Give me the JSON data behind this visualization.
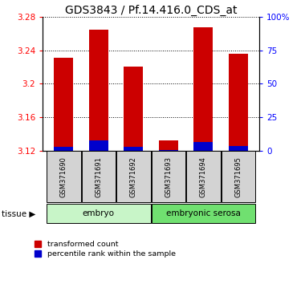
{
  "title": "GDS3843 / Pf.14.416.0_CDS_at",
  "samples": [
    "GSM371690",
    "GSM371691",
    "GSM371692",
    "GSM371693",
    "GSM371694",
    "GSM371695"
  ],
  "red_values": [
    3.231,
    3.265,
    3.221,
    3.132,
    3.268,
    3.236
  ],
  "blue_values": [
    3.124,
    3.132,
    3.124,
    3.121,
    3.13,
    3.125
  ],
  "ymin": 3.12,
  "ymax": 3.28,
  "yticks_left": [
    3.12,
    3.16,
    3.2,
    3.24,
    3.28
  ],
  "tissue_labels": [
    {
      "label": "embryo",
      "start": 0,
      "end": 2,
      "color": "#c8f5c8"
    },
    {
      "label": "embryonic serosa",
      "start": 3,
      "end": 5,
      "color": "#70e070"
    }
  ],
  "tissue_row_label": "tissue",
  "bar_color_red": "#cc0000",
  "bar_color_blue": "#0000cc",
  "bar_width": 0.55,
  "legend_items": [
    {
      "color": "#cc0000",
      "label": "transformed count"
    },
    {
      "color": "#0000cc",
      "label": "percentile rank within the sample"
    }
  ],
  "title_fontsize": 10,
  "tick_fontsize": 7.5,
  "background_color": "#ffffff"
}
